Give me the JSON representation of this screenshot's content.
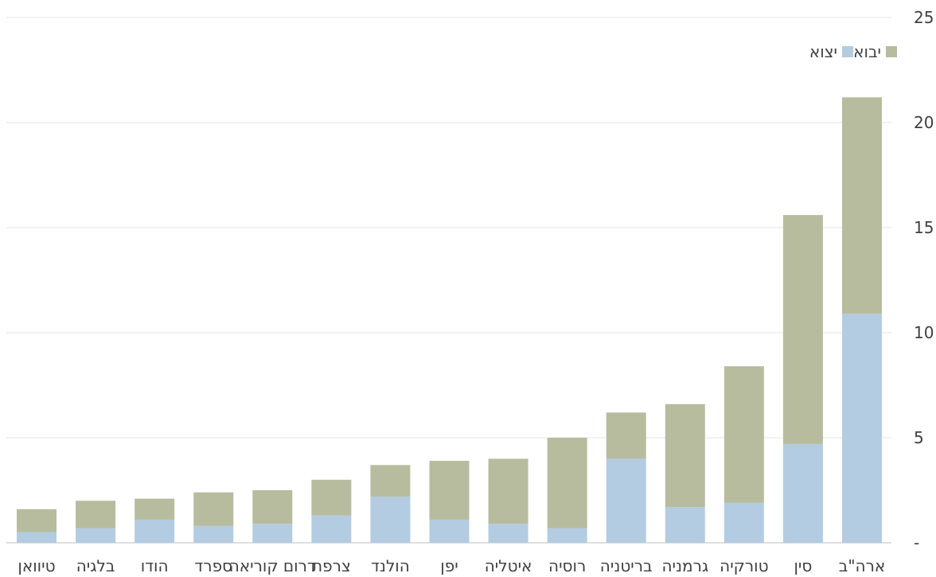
{
  "chart_data": {
    "type": "bar",
    "stacked": true,
    "categories": [
      "ארה\"ב",
      "סין",
      "טורקיה",
      "גרמניה",
      "בריטניה",
      "רוסיה",
      "איטליה",
      "יפן",
      "הולנד",
      "צרפת",
      "דרום קוריאה",
      "ספרד",
      "הודו",
      "בלגיה",
      "טיוואן"
    ],
    "series": [
      {
        "name": "יצוא",
        "color": "#b4cce1",
        "values": [
          10.9,
          4.7,
          1.9,
          1.7,
          4.0,
          0.7,
          0.9,
          1.1,
          2.2,
          1.3,
          0.9,
          0.8,
          1.1,
          0.7,
          0.5
        ]
      },
      {
        "name": "יבוא",
        "color": "#b7bc9e",
        "values": [
          10.3,
          10.9,
          6.5,
          4.9,
          2.2,
          4.3,
          3.1,
          2.8,
          1.5,
          1.7,
          1.6,
          1.6,
          1.0,
          1.3,
          1.1
        ]
      }
    ],
    "y_ticks": [
      "-",
      "5",
      "10",
      "15",
      "20",
      "25"
    ],
    "ylim": [
      0,
      25
    ],
    "y_axis_side": "right",
    "grid": true,
    "legend_position": "top-right",
    "title": "",
    "xlabel": "",
    "ylabel": ""
  }
}
